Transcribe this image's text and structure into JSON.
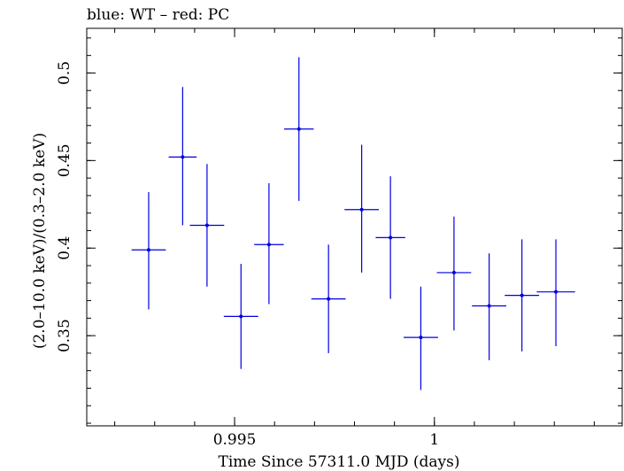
{
  "chart_data": {
    "type": "scatter",
    "title": "blue: WT – red: PC",
    "xlabel": "Time Since 57311.0 MJD (days)",
    "ylabel": "(2.0–10.0 keV)/(0.3–2.0 keV)",
    "xlim": [
      0.9913,
      1.0047
    ],
    "ylim": [
      0.2985,
      0.5255
    ],
    "x_major_ticks": [
      0.995,
      1
    ],
    "x_tick_labels": [
      "0.995",
      "1"
    ],
    "x_minor_step": 0.001,
    "y_major_ticks": [
      0.35,
      0.4,
      0.45,
      0.5
    ],
    "y_tick_labels": [
      "0.35",
      "0.4",
      "0.45",
      "0.5"
    ],
    "y_minor_step": 0.01,
    "grid": false,
    "series": [
      {
        "color": "#0000e0",
        "points": [
          {
            "x": 0.99285,
            "xerr": 0.00043,
            "y": 0.399,
            "ylo": 0.365,
            "yhi": 0.432
          },
          {
            "x": 0.9937,
            "xerr": 0.00035,
            "y": 0.452,
            "ylo": 0.413,
            "yhi": 0.492
          },
          {
            "x": 0.99431,
            "xerr": 0.00043,
            "y": 0.413,
            "ylo": 0.378,
            "yhi": 0.448
          },
          {
            "x": 0.99516,
            "xerr": 0.00043,
            "y": 0.361,
            "ylo": 0.331,
            "yhi": 0.391
          },
          {
            "x": 0.99586,
            "xerr": 0.00037,
            "y": 0.402,
            "ylo": 0.368,
            "yhi": 0.437
          },
          {
            "x": 0.99661,
            "xerr": 0.00037,
            "y": 0.468,
            "ylo": 0.427,
            "yhi": 0.509
          },
          {
            "x": 0.99735,
            "xerr": 0.00043,
            "y": 0.371,
            "ylo": 0.34,
            "yhi": 0.402
          },
          {
            "x": 0.99818,
            "xerr": 0.00043,
            "y": 0.422,
            "ylo": 0.386,
            "yhi": 0.459
          },
          {
            "x": 0.9989,
            "xerr": 0.00037,
            "y": 0.406,
            "ylo": 0.371,
            "yhi": 0.441
          },
          {
            "x": 0.99966,
            "xerr": 0.00043,
            "y": 0.349,
            "ylo": 0.319,
            "yhi": 0.378
          },
          {
            "x": 1.00049,
            "xerr": 0.00043,
            "y": 0.386,
            "ylo": 0.353,
            "yhi": 0.418
          },
          {
            "x": 1.00137,
            "xerr": 0.00043,
            "y": 0.367,
            "ylo": 0.336,
            "yhi": 0.397
          },
          {
            "x": 1.00219,
            "xerr": 0.00043,
            "y": 0.373,
            "ylo": 0.341,
            "yhi": 0.405
          },
          {
            "x": 1.00304,
            "xerr": 0.00048,
            "y": 0.375,
            "ylo": 0.344,
            "yhi": 0.405
          }
        ]
      }
    ]
  }
}
